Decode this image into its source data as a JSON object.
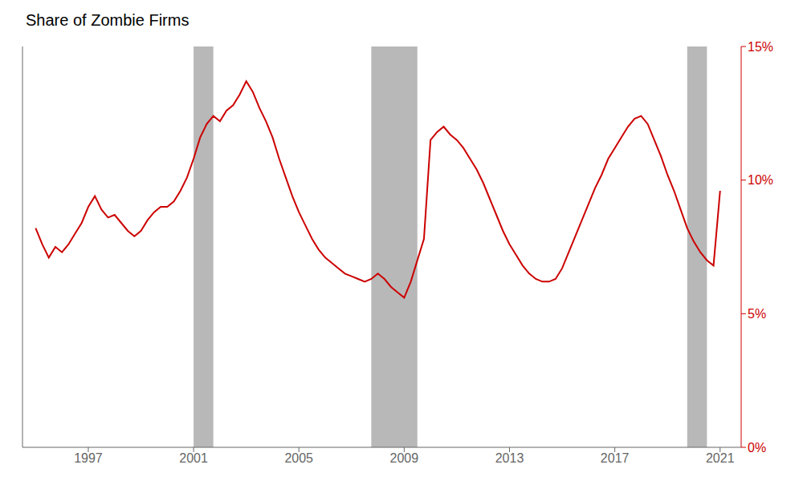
{
  "chart_data": {
    "type": "line",
    "title": "Share of Zombie Firms",
    "color": "#cc0000",
    "x": [
      1995.0,
      1995.25,
      1995.5,
      1995.75,
      1996.0,
      1996.25,
      1996.5,
      1996.75,
      1997.0,
      1997.25,
      1997.5,
      1997.75,
      1998.0,
      1998.25,
      1998.5,
      1998.75,
      1999.0,
      1999.25,
      1999.5,
      1999.75,
      2000.0,
      2000.25,
      2000.5,
      2000.75,
      2001.0,
      2001.25,
      2001.5,
      2001.75,
      2002.0,
      2002.25,
      2002.5,
      2002.75,
      2003.0,
      2003.25,
      2003.5,
      2003.75,
      2004.0,
      2004.25,
      2004.5,
      2004.75,
      2005.0,
      2005.25,
      2005.5,
      2005.75,
      2006.0,
      2006.25,
      2006.5,
      2006.75,
      2007.0,
      2007.25,
      2007.5,
      2007.75,
      2008.0,
      2008.25,
      2008.5,
      2008.75,
      2009.0,
      2009.25,
      2009.5,
      2009.75,
      2010.0,
      2010.25,
      2010.5,
      2010.75,
      2011.0,
      2011.25,
      2011.5,
      2011.75,
      2012.0,
      2012.25,
      2012.5,
      2012.75,
      2013.0,
      2013.25,
      2013.5,
      2013.75,
      2014.0,
      2014.25,
      2014.5,
      2014.75,
      2015.0,
      2015.25,
      2015.5,
      2015.75,
      2016.0,
      2016.25,
      2016.5,
      2016.75,
      2017.0,
      2017.25,
      2017.5,
      2017.75,
      2018.0,
      2018.25,
      2018.5,
      2018.75,
      2019.0,
      2019.25,
      2019.5,
      2019.75,
      2020.0,
      2020.25,
      2020.5,
      2020.75,
      2021.0
    ],
    "values": [
      0.082,
      0.076,
      0.071,
      0.075,
      0.073,
      0.076,
      0.08,
      0.084,
      0.09,
      0.094,
      0.089,
      0.086,
      0.087,
      0.084,
      0.081,
      0.079,
      0.081,
      0.085,
      0.088,
      0.09,
      0.09,
      0.092,
      0.096,
      0.101,
      0.108,
      0.116,
      0.121,
      0.124,
      0.122,
      0.126,
      0.128,
      0.132,
      0.137,
      0.133,
      0.127,
      0.122,
      0.116,
      0.108,
      0.101,
      0.094,
      0.088,
      0.083,
      0.078,
      0.074,
      0.071,
      0.069,
      0.067,
      0.065,
      0.064,
      0.063,
      0.062,
      0.063,
      0.065,
      0.063,
      0.06,
      0.058,
      0.056,
      0.062,
      0.07,
      0.078,
      0.115,
      0.118,
      0.12,
      0.117,
      0.115,
      0.112,
      0.108,
      0.104,
      0.099,
      0.093,
      0.087,
      0.081,
      0.076,
      0.072,
      0.068,
      0.065,
      0.063,
      0.062,
      0.062,
      0.063,
      0.067,
      0.073,
      0.079,
      0.085,
      0.091,
      0.097,
      0.102,
      0.108,
      0.112,
      0.116,
      0.12,
      0.123,
      0.124,
      0.121,
      0.115,
      0.109,
      0.102,
      0.096,
      0.089,
      0.082,
      0.077,
      0.073,
      0.07,
      0.068,
      0.096
    ],
    "xlim": [
      1994.5,
      2021.8
    ],
    "xticks": [
      1997,
      2001,
      2005,
      2009,
      2013,
      2017,
      2021
    ],
    "ylim": [
      0,
      0.15
    ],
    "yticks": [
      {
        "value": 0,
        "label": "0%"
      },
      {
        "value": 0.05,
        "label": "5%"
      },
      {
        "value": 0.1,
        "label": "10%"
      },
      {
        "value": 0.15,
        "label": "15%"
      }
    ],
    "recessions": [
      [
        2001.0,
        2001.75
      ],
      [
        2007.75,
        2009.5
      ],
      [
        2019.75,
        2020.5
      ]
    ],
    "grid": false
  }
}
